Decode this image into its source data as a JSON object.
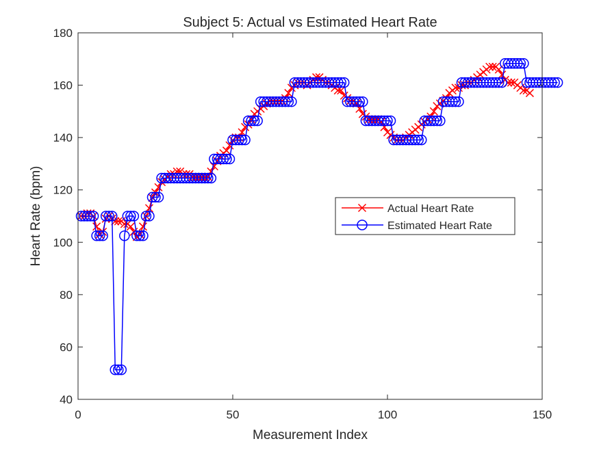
{
  "chart_data": {
    "type": "line",
    "title": "Subject 5: Actual vs Estimated Heart Rate",
    "xlabel": "Measurement Index",
    "ylabel": "Heart Rate (bpm)",
    "xlim": [
      0,
      150
    ],
    "ylim": [
      40,
      180
    ],
    "xticks": [
      0,
      50,
      100,
      150
    ],
    "yticks": [
      40,
      60,
      80,
      100,
      120,
      140,
      160,
      180
    ],
    "grid": false,
    "legend_position": "center-right",
    "series": [
      {
        "name": "Actual Heart Rate",
        "color": "#ff0000",
        "marker": "x",
        "values": [
          110,
          110,
          111,
          111,
          110,
          106,
          103,
          104,
          109,
          110,
          109,
          108,
          108,
          108,
          107,
          107,
          106,
          104,
          102,
          103,
          106,
          110,
          113,
          117,
          119,
          121,
          123,
          124,
          125,
          126,
          126,
          127,
          127,
          126,
          126,
          126,
          125,
          125,
          125,
          125,
          125,
          125,
          127,
          129,
          131,
          133,
          134,
          135,
          137,
          139,
          140,
          140,
          142,
          144,
          145,
          147,
          149,
          150,
          151,
          152,
          153,
          154,
          154,
          154,
          154,
          154,
          155,
          157,
          159,
          160,
          161,
          161,
          161,
          160,
          161,
          162,
          163,
          163,
          162,
          161,
          161,
          160,
          159,
          158,
          158,
          156,
          155,
          154,
          154,
          153,
          151,
          149,
          148,
          147,
          147,
          147,
          147,
          146,
          144,
          142,
          141,
          140,
          139,
          139,
          139,
          140,
          141,
          142,
          143,
          144,
          145,
          146,
          147,
          148,
          150,
          152,
          153,
          154,
          155,
          157,
          158,
          159,
          159,
          160,
          160,
          161,
          161,
          162,
          163,
          164,
          165,
          166,
          167,
          167,
          167,
          166,
          164,
          162,
          161,
          161,
          161,
          160,
          159,
          158,
          158,
          157
        ]
      },
      {
        "name": "Estimated Heart Rate",
        "color": "#0000ff",
        "marker": "o",
        "values": [
          110,
          110,
          110,
          110,
          110,
          102.5,
          102.5,
          102.5,
          110,
          110,
          110,
          51.3,
          51.3,
          51.3,
          102.5,
          110,
          110,
          110,
          102.5,
          102.5,
          102.5,
          110,
          110,
          117.2,
          117.2,
          117.2,
          124.5,
          124.5,
          124.5,
          124.5,
          124.5,
          124.5,
          124.5,
          124.5,
          124.5,
          124.5,
          124.5,
          124.5,
          124.5,
          124.5,
          124.5,
          124.5,
          124.5,
          131.8,
          131.8,
          131.8,
          131.8,
          131.8,
          131.8,
          139.1,
          139.1,
          139.1,
          139.1,
          139.1,
          146.4,
          146.4,
          146.4,
          146.4,
          153.7,
          153.7,
          153.7,
          153.7,
          153.7,
          153.7,
          153.7,
          153.7,
          153.7,
          153.7,
          153.7,
          161,
          161,
          161,
          161,
          161,
          161,
          161,
          161,
          161,
          161,
          161,
          161,
          161,
          161,
          161,
          161,
          161,
          153.7,
          153.7,
          153.7,
          153.7,
          153.7,
          153.7,
          146.4,
          146.4,
          146.4,
          146.4,
          146.4,
          146.4,
          146.4,
          146.4,
          146.4,
          139.1,
          139.1,
          139.1,
          139.1,
          139.1,
          139.1,
          139.1,
          139.1,
          139.1,
          139.1,
          146.4,
          146.4,
          146.4,
          146.4,
          146.4,
          146.4,
          153.7,
          153.7,
          153.7,
          153.7,
          153.7,
          153.7,
          161,
          161,
          161,
          161,
          161,
          161,
          161,
          161,
          161,
          161,
          161,
          161,
          161,
          161,
          168.3,
          168.3,
          168.3,
          168.3,
          168.3,
          168.3,
          168.3,
          161,
          161,
          161,
          161,
          161,
          161,
          161,
          161,
          161,
          161,
          161
        ]
      }
    ]
  }
}
